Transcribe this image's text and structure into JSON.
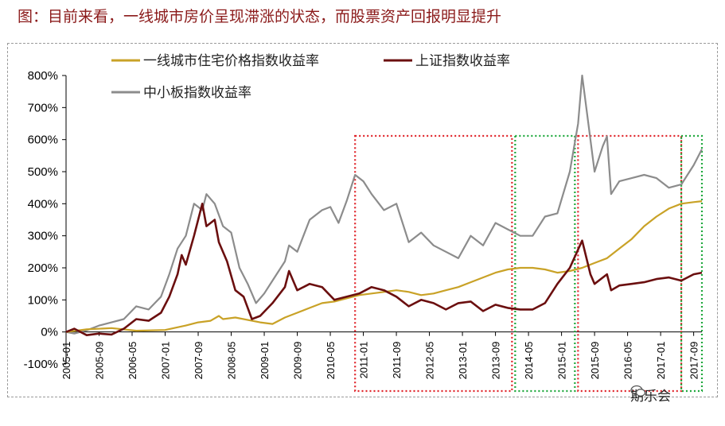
{
  "title": "图：目前来看，一线城市房价呈现滞涨的状态，而股票资产回报明显提升",
  "watermark": "期乐会",
  "colors": {
    "housing": "#c9a227",
    "shanghai": "#6b0f0f",
    "sme": "#8c8c8c",
    "box_red": "#e0242a",
    "box_green": "#1ea83c",
    "title": "#8b1a1a"
  },
  "chart_data": {
    "type": "line",
    "title": "",
    "xlabel": "",
    "ylabel": "",
    "ylim": [
      -100,
      800
    ],
    "y_ticks": [
      -100,
      0,
      100,
      200,
      300,
      400,
      500,
      600,
      700,
      800
    ],
    "y_tick_labels": [
      "-100%",
      "0%",
      "100%",
      "200%",
      "300%",
      "400%",
      "500%",
      "600%",
      "700%",
      "800%"
    ],
    "x_tick_labels": [
      "2005-01",
      "2005-09",
      "2006-05",
      "2007-01",
      "2007-09",
      "2008-05",
      "2009-01",
      "2009-09",
      "2010-05",
      "2011-01",
      "2011-09",
      "2012-05",
      "2013-01",
      "2013-09",
      "2014-05",
      "2015-01",
      "2015-09",
      "2016-05",
      "2017-01",
      "2017-09"
    ],
    "x_range": [
      "2005-01",
      "2017-11"
    ],
    "grid": false,
    "legend_position": "top-left",
    "series": [
      {
        "name": "一线城市住宅价格指数收益率",
        "color_key": "housing",
        "points": [
          [
            "2005-01",
            0
          ],
          [
            "2005-06",
            8
          ],
          [
            "2005-12",
            12
          ],
          [
            "2006-06",
            4
          ],
          [
            "2007-01",
            6
          ],
          [
            "2007-06",
            20
          ],
          [
            "2007-09",
            30
          ],
          [
            "2007-12",
            35
          ],
          [
            "2008-02",
            50
          ],
          [
            "2008-03",
            40
          ],
          [
            "2008-06",
            45
          ],
          [
            "2008-12",
            30
          ],
          [
            "2009-03",
            25
          ],
          [
            "2009-06",
            45
          ],
          [
            "2009-09",
            60
          ],
          [
            "2009-12",
            75
          ],
          [
            "2010-03",
            90
          ],
          [
            "2010-06",
            95
          ],
          [
            "2010-09",
            105
          ],
          [
            "2010-12",
            115
          ],
          [
            "2011-03",
            120
          ],
          [
            "2011-06",
            125
          ],
          [
            "2011-09",
            130
          ],
          [
            "2011-12",
            125
          ],
          [
            "2012-03",
            115
          ],
          [
            "2012-06",
            120
          ],
          [
            "2012-09",
            130
          ],
          [
            "2012-12",
            140
          ],
          [
            "2013-03",
            155
          ],
          [
            "2013-06",
            170
          ],
          [
            "2013-09",
            185
          ],
          [
            "2013-12",
            195
          ],
          [
            "2014-03",
            200
          ],
          [
            "2014-06",
            200
          ],
          [
            "2014-09",
            195
          ],
          [
            "2014-12",
            185
          ],
          [
            "2015-03",
            190
          ],
          [
            "2015-06",
            200
          ],
          [
            "2015-09",
            215
          ],
          [
            "2015-12",
            230
          ],
          [
            "2016-03",
            260
          ],
          [
            "2016-06",
            290
          ],
          [
            "2016-09",
            330
          ],
          [
            "2016-12",
            360
          ],
          [
            "2017-03",
            385
          ],
          [
            "2017-06",
            400
          ],
          [
            "2017-09",
            405
          ],
          [
            "2017-11",
            408
          ]
        ]
      },
      {
        "name": "上证指数收益率",
        "color_key": "shanghai",
        "points": [
          [
            "2005-01",
            0
          ],
          [
            "2005-03",
            10
          ],
          [
            "2005-06",
            -10
          ],
          [
            "2005-09",
            -5
          ],
          [
            "2005-12",
            -8
          ],
          [
            "2006-03",
            10
          ],
          [
            "2006-06",
            40
          ],
          [
            "2006-09",
            35
          ],
          [
            "2006-12",
            60
          ],
          [
            "2007-02",
            110
          ],
          [
            "2007-04",
            180
          ],
          [
            "2007-05",
            240
          ],
          [
            "2007-06",
            210
          ],
          [
            "2007-08",
            300
          ],
          [
            "2007-10",
            400
          ],
          [
            "2007-11",
            330
          ],
          [
            "2008-01",
            350
          ],
          [
            "2008-02",
            280
          ],
          [
            "2008-04",
            220
          ],
          [
            "2008-06",
            130
          ],
          [
            "2008-08",
            110
          ],
          [
            "2008-10",
            40
          ],
          [
            "2008-12",
            50
          ],
          [
            "2009-03",
            90
          ],
          [
            "2009-06",
            140
          ],
          [
            "2009-07",
            190
          ],
          [
            "2009-09",
            130
          ],
          [
            "2009-12",
            150
          ],
          [
            "2010-03",
            140
          ],
          [
            "2010-06",
            100
          ],
          [
            "2010-09",
            110
          ],
          [
            "2010-12",
            120
          ],
          [
            "2011-03",
            140
          ],
          [
            "2011-06",
            130
          ],
          [
            "2011-09",
            110
          ],
          [
            "2011-12",
            80
          ],
          [
            "2012-03",
            100
          ],
          [
            "2012-06",
            90
          ],
          [
            "2012-09",
            70
          ],
          [
            "2012-12",
            90
          ],
          [
            "2013-03",
            95
          ],
          [
            "2013-06",
            65
          ],
          [
            "2013-09",
            85
          ],
          [
            "2013-12",
            75
          ],
          [
            "2014-03",
            70
          ],
          [
            "2014-06",
            70
          ],
          [
            "2014-09",
            90
          ],
          [
            "2014-12",
            150
          ],
          [
            "2015-03",
            200
          ],
          [
            "2015-06",
            285
          ],
          [
            "2015-08",
            180
          ],
          [
            "2015-09",
            150
          ],
          [
            "2015-12",
            180
          ],
          [
            "2016-01",
            130
          ],
          [
            "2016-03",
            145
          ],
          [
            "2016-06",
            150
          ],
          [
            "2016-09",
            155
          ],
          [
            "2016-12",
            165
          ],
          [
            "2017-03",
            170
          ],
          [
            "2017-06",
            160
          ],
          [
            "2017-09",
            180
          ],
          [
            "2017-11",
            185
          ]
        ]
      },
      {
        "name": "中小板指数收益率",
        "color_key": "sme",
        "points": [
          [
            "2005-01",
            0
          ],
          [
            "2005-03",
            -5
          ],
          [
            "2005-06",
            5
          ],
          [
            "2005-09",
            20
          ],
          [
            "2005-12",
            30
          ],
          [
            "2006-03",
            40
          ],
          [
            "2006-06",
            80
          ],
          [
            "2006-09",
            70
          ],
          [
            "2006-12",
            110
          ],
          [
            "2007-02",
            180
          ],
          [
            "2007-04",
            260
          ],
          [
            "2007-06",
            300
          ],
          [
            "2007-08",
            400
          ],
          [
            "2007-10",
            380
          ],
          [
            "2007-11",
            430
          ],
          [
            "2008-01",
            400
          ],
          [
            "2008-03",
            330
          ],
          [
            "2008-05",
            310
          ],
          [
            "2008-07",
            200
          ],
          [
            "2008-09",
            150
          ],
          [
            "2008-11",
            90
          ],
          [
            "2009-01",
            120
          ],
          [
            "2009-03",
            160
          ],
          [
            "2009-06",
            220
          ],
          [
            "2009-07",
            270
          ],
          [
            "2009-09",
            250
          ],
          [
            "2009-12",
            350
          ],
          [
            "2010-03",
            380
          ],
          [
            "2010-05",
            390
          ],
          [
            "2010-07",
            340
          ],
          [
            "2010-09",
            410
          ],
          [
            "2010-11",
            490
          ],
          [
            "2011-01",
            470
          ],
          [
            "2011-03",
            430
          ],
          [
            "2011-06",
            380
          ],
          [
            "2011-09",
            400
          ],
          [
            "2011-12",
            280
          ],
          [
            "2012-03",
            310
          ],
          [
            "2012-06",
            270
          ],
          [
            "2012-09",
            250
          ],
          [
            "2012-12",
            230
          ],
          [
            "2013-03",
            300
          ],
          [
            "2013-06",
            270
          ],
          [
            "2013-09",
            340
          ],
          [
            "2013-12",
            320
          ],
          [
            "2014-03",
            300
          ],
          [
            "2014-06",
            300
          ],
          [
            "2014-09",
            360
          ],
          [
            "2014-12",
            370
          ],
          [
            "2015-03",
            500
          ],
          [
            "2015-05",
            650
          ],
          [
            "2015-06",
            800
          ],
          [
            "2015-07",
            700
          ],
          [
            "2015-09",
            500
          ],
          [
            "2015-11",
            580
          ],
          [
            "2015-12",
            610
          ],
          [
            "2016-01",
            430
          ],
          [
            "2016-03",
            470
          ],
          [
            "2016-06",
            480
          ],
          [
            "2016-09",
            490
          ],
          [
            "2016-12",
            480
          ],
          [
            "2017-03",
            450
          ],
          [
            "2017-06",
            460
          ],
          [
            "2017-09",
            520
          ],
          [
            "2017-11",
            570
          ]
        ]
      }
    ],
    "highlight_boxes": [
      {
        "start": "2010-11",
        "end": "2014-01",
        "color_key": "box_red"
      },
      {
        "start": "2014-01",
        "end": "2015-05",
        "color_key": "box_green"
      },
      {
        "start": "2015-05",
        "end": "2017-06",
        "color_key": "box_red"
      },
      {
        "start": "2017-06",
        "end": "2017-11",
        "color_key": "box_green"
      }
    ]
  }
}
